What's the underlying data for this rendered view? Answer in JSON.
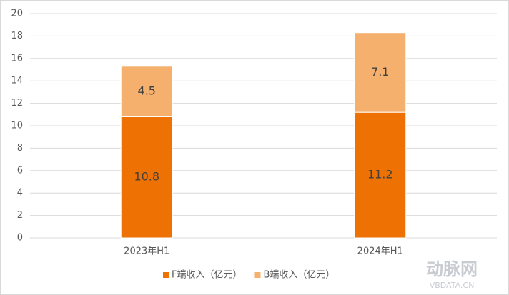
{
  "chart_data": {
    "type": "stacked_bar",
    "categories": [
      "2023年H1",
      "2024年H1"
    ],
    "series": [
      {
        "name": "F端收入（亿元）",
        "color": "#ee7203",
        "values": [
          10.8,
          11.2
        ]
      },
      {
        "name": "B端收入（亿元）",
        "color": "#f5b06e",
        "values": [
          4.5,
          7.1
        ]
      }
    ],
    "ylim": [
      0,
      20
    ],
    "yticks": [
      0,
      2,
      4,
      6,
      8,
      10,
      12,
      14,
      16,
      18,
      20
    ],
    "grid": true,
    "legend": "bottom"
  },
  "watermark": {
    "logo": "动脉网",
    "url": "VBDATA.CN"
  }
}
